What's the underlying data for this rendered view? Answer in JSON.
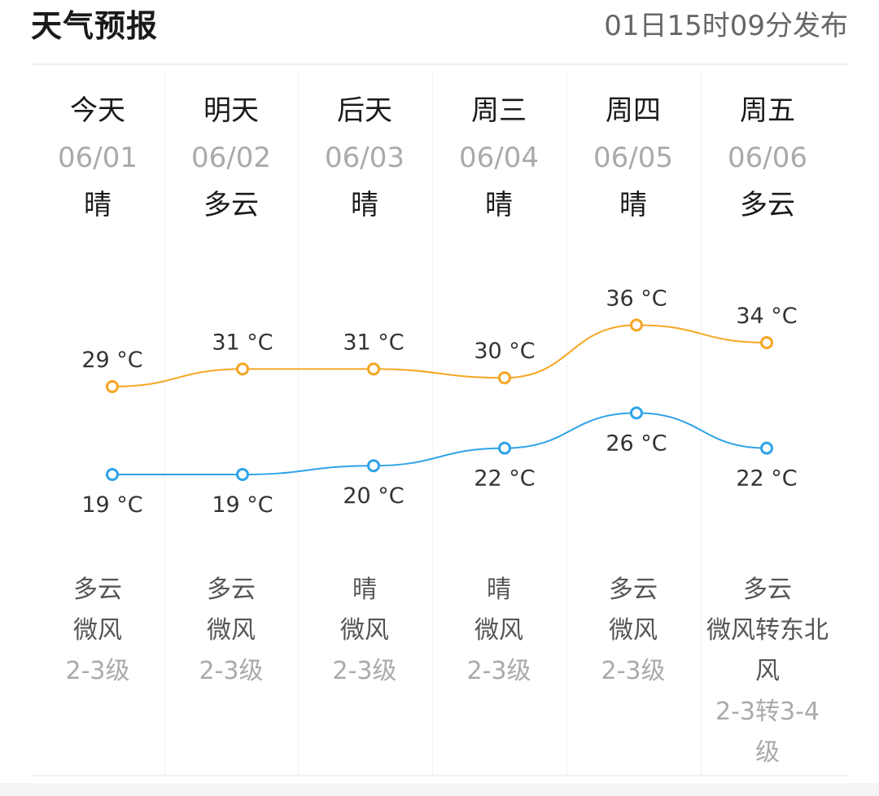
{
  "header": {
    "title": "天气预报",
    "publish_time": "01日15时09分发布"
  },
  "colors": {
    "high_line": "#f5a623",
    "low_line": "#2ea3e8",
    "label": "#333333"
  },
  "days": [
    {
      "name": "今天",
      "date": "06/01",
      "day_weather": "晴",
      "night_weather": "多云",
      "wind": "微风",
      "wind_level": "2-3级"
    },
    {
      "name": "明天",
      "date": "06/02",
      "day_weather": "多云",
      "night_weather": "多云",
      "wind": "微风",
      "wind_level": "2-3级"
    },
    {
      "name": "后天",
      "date": "06/03",
      "day_weather": "晴",
      "night_weather": "晴",
      "wind": "微风",
      "wind_level": "2-3级"
    },
    {
      "name": "周三",
      "date": "06/04",
      "day_weather": "晴",
      "night_weather": "晴",
      "wind": "微风",
      "wind_level": "2-3级"
    },
    {
      "name": "周四",
      "date": "06/05",
      "day_weather": "晴",
      "night_weather": "多云",
      "wind": "微风",
      "wind_level": "2-3级"
    },
    {
      "name": "周五",
      "date": "06/06",
      "day_weather": "多云",
      "night_weather": "多云",
      "wind": "微风转东北风",
      "wind_level": "2-3转3-4级"
    }
  ],
  "chart_data": {
    "type": "line",
    "categories": [
      "06/01",
      "06/02",
      "06/03",
      "06/04",
      "06/05",
      "06/06"
    ],
    "unit": "°C",
    "series": [
      {
        "values": [
          29,
          31,
          31,
          30,
          36,
          34
        ],
        "color": "#f5a623"
      },
      {
        "values": [
          19,
          19,
          20,
          22,
          26,
          22
        ],
        "color": "#2ea3e8"
      }
    ],
    "labels_high": [
      "29 °C",
      "31 °C",
      "31 °C",
      "30 °C",
      "36 °C",
      "34 °C"
    ],
    "labels_low": [
      "19 °C",
      "19 °C",
      "20 °C",
      "22 °C",
      "26 °C",
      "22 °C"
    ]
  }
}
